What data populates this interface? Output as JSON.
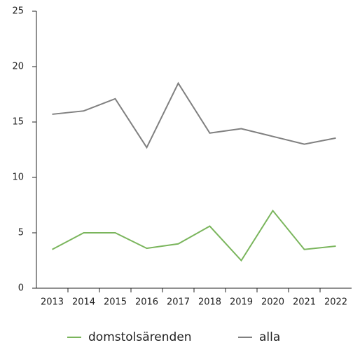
{
  "chart_data": {
    "type": "line",
    "categories": [
      "2013",
      "2014",
      "2015",
      "2016",
      "2017",
      "2018",
      "2019",
      "2020",
      "2021",
      "2022"
    ],
    "series": [
      {
        "name": "domstolsärenden",
        "color": "#7ab55c",
        "values": [
          3.5,
          5.0,
          5.0,
          3.6,
          4.0,
          5.6,
          2.5,
          7.0,
          3.5,
          3.8
        ]
      },
      {
        "name": "alla",
        "color": "#808080",
        "values": [
          15.7,
          16.0,
          17.1,
          12.7,
          18.5,
          14.0,
          14.4,
          13.7,
          13.0,
          13.55
        ]
      }
    ],
    "ylim": [
      0,
      25
    ],
    "yticks": [
      0,
      5,
      10,
      15,
      20,
      25
    ],
    "grid": false,
    "legend": "bottom"
  }
}
